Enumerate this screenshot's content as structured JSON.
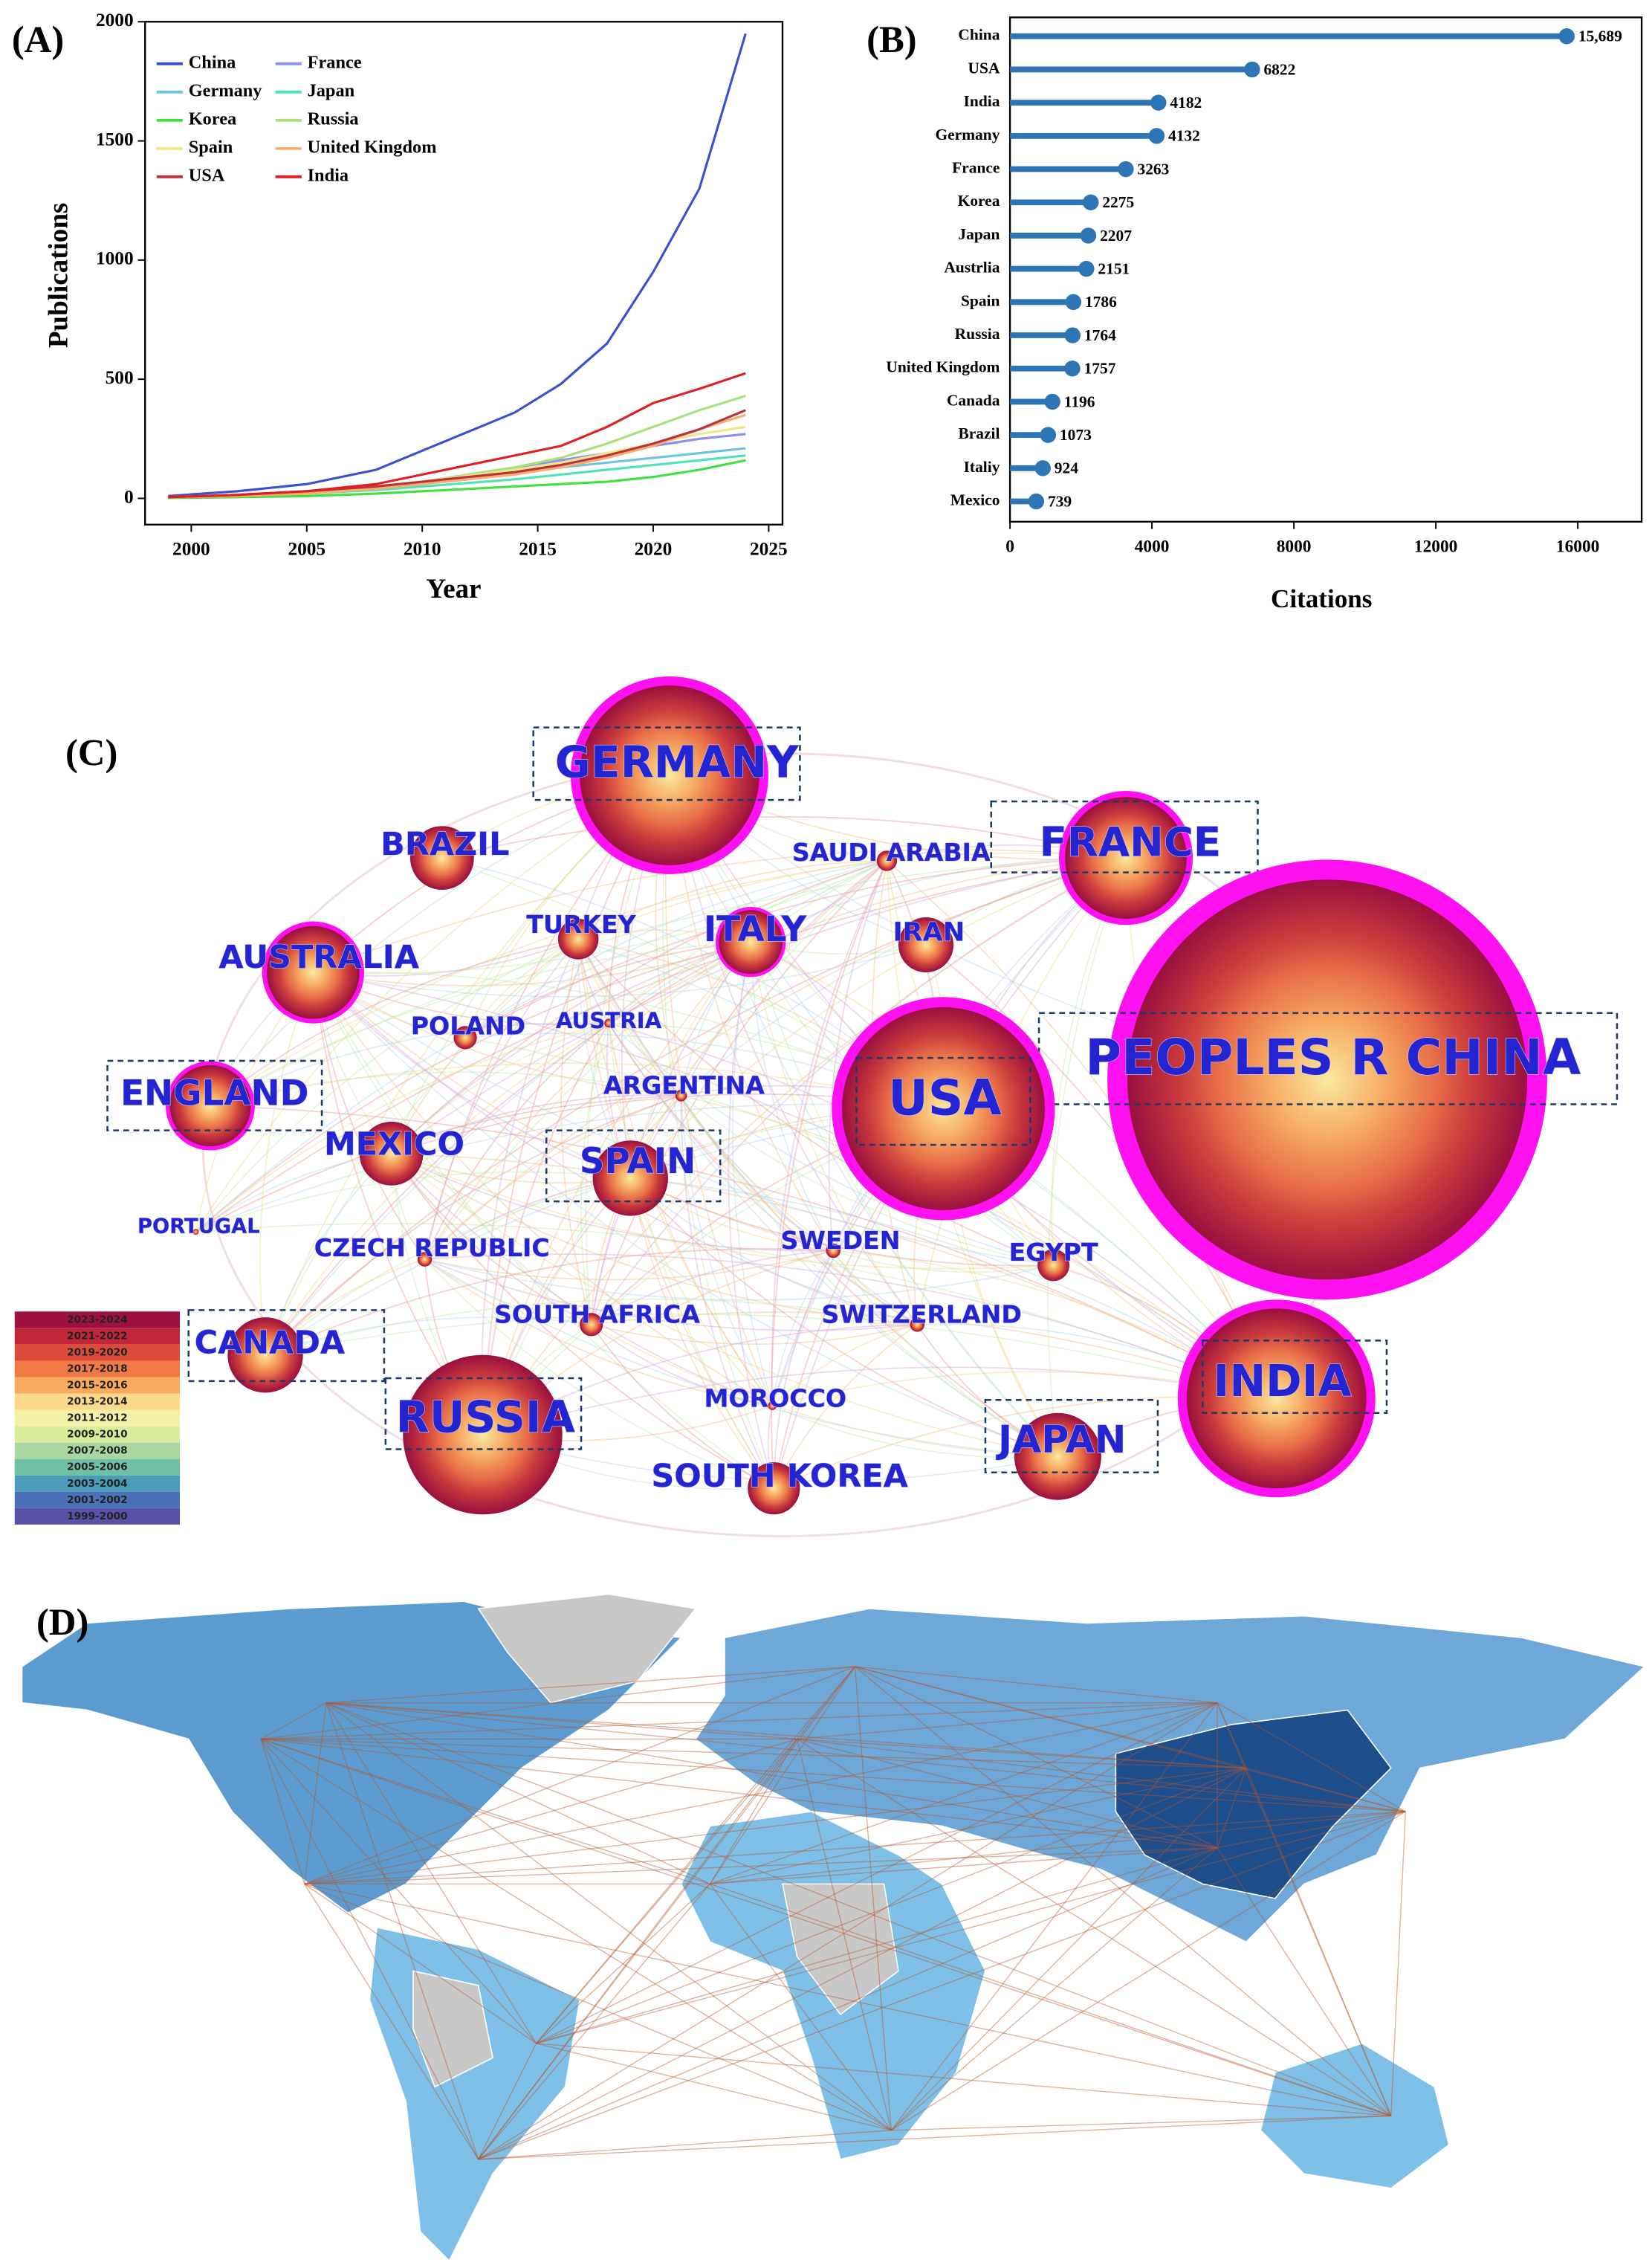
{
  "chart_data": [
    {
      "type": "line",
      "panel_label": "(A)",
      "x_label": "Year",
      "y_label": "Publications",
      "x": [
        1999,
        2002,
        2005,
        2008,
        2010,
        2012,
        2014,
        2016,
        2018,
        2020,
        2022,
        2024
      ],
      "xlim": [
        1998,
        2025.6
      ],
      "xticks": [
        2000,
        2005,
        2010,
        2015,
        2020,
        2025
      ],
      "ylim": [
        -110,
        2000
      ],
      "yticks": [
        0,
        500,
        1000,
        1500,
        2000
      ],
      "series": [
        {
          "name": "China",
          "color": "#3a4fd1",
          "values": [
            10,
            30,
            60,
            120,
            200,
            280,
            360,
            480,
            650,
            950,
            1300,
            1950
          ]
        },
        {
          "name": "France",
          "color": "#8b8ff0",
          "values": [
            5,
            15,
            30,
            50,
            70,
            100,
            130,
            160,
            190,
            220,
            250,
            270
          ]
        },
        {
          "name": "Germany",
          "color": "#6cc3e0",
          "values": [
            5,
            15,
            30,
            50,
            70,
            90,
            110,
            130,
            150,
            170,
            190,
            210
          ]
        },
        {
          "name": "Japan",
          "color": "#4de3b8",
          "values": [
            5,
            10,
            20,
            35,
            50,
            65,
            80,
            100,
            120,
            140,
            160,
            180
          ]
        },
        {
          "name": "Korea",
          "color": "#40e040",
          "values": [
            2,
            5,
            10,
            20,
            30,
            40,
            50,
            60,
            70,
            90,
            120,
            160
          ]
        },
        {
          "name": "Russia",
          "color": "#a8e07a",
          "values": [
            5,
            10,
            25,
            45,
            70,
            100,
            130,
            170,
            230,
            300,
            370,
            430
          ]
        },
        {
          "name": "Spain",
          "color": "#f0e68c",
          "values": [
            5,
            15,
            30,
            50,
            70,
            95,
            120,
            150,
            190,
            230,
            270,
            300
          ]
        },
        {
          "name": "United Kingdom",
          "color": "#f5b070",
          "values": [
            5,
            10,
            20,
            40,
            60,
            80,
            100,
            130,
            170,
            220,
            290,
            350
          ]
        },
        {
          "name": "USA",
          "color": "#c0303a",
          "values": [
            5,
            15,
            30,
            50,
            70,
            90,
            110,
            140,
            180,
            230,
            290,
            370
          ]
        },
        {
          "name": "India",
          "color": "#e02020",
          "values": [
            5,
            15,
            30,
            60,
            100,
            140,
            180,
            220,
            300,
            400,
            460,
            525
          ]
        }
      ]
    },
    {
      "type": "lollipop",
      "panel_label": "(B)",
      "x_label": "Citations",
      "color": "#2e75b6",
      "categories": [
        "China",
        "USA",
        "India",
        "Germany",
        "France",
        "Korea",
        "Japan",
        "Austrlia",
        "Spain",
        "Russia",
        "United Kingdom",
        "Canada",
        "Brazil",
        "Italiy",
        "Mexico"
      ],
      "values": [
        15689,
        6822,
        4182,
        4132,
        3263,
        2275,
        2207,
        2151,
        1786,
        1764,
        1757,
        1196,
        1073,
        924,
        739
      ],
      "value_labels": [
        "15,689",
        "6822",
        "4182",
        "4132",
        "3263",
        "2275",
        "2207",
        "2151",
        "1786",
        "1764",
        "1757",
        "1196",
        "1073",
        "924",
        "739"
      ],
      "xlim": [
        0,
        17800
      ],
      "xticks": [
        0,
        4000,
        8000,
        12000,
        16000
      ]
    },
    {
      "type": "network",
      "panel_label": "(C)",
      "nodes": [
        {
          "label": "GERMANY"
        },
        {
          "label": "FRANCE"
        },
        {
          "label": "PEOPLES R CHINA"
        },
        {
          "label": "USA"
        },
        {
          "label": "INDIA"
        },
        {
          "label": "BRAZIL"
        },
        {
          "label": "AUSTRALIA"
        },
        {
          "label": "ITALY"
        },
        {
          "label": "IRAN"
        },
        {
          "label": "SAUDI ARABIA"
        },
        {
          "label": "TURKEY"
        },
        {
          "label": "POLAND"
        },
        {
          "label": "AUSTRIA"
        },
        {
          "label": "ARGENTINA"
        },
        {
          "label": "ENGLAND"
        },
        {
          "label": "MEXICO"
        },
        {
          "label": "SPAIN"
        },
        {
          "label": "PORTUGAL"
        },
        {
          "label": "CZECH REPUBLIC"
        },
        {
          "label": "SWEDEN"
        },
        {
          "label": "EGYPT"
        },
        {
          "label": "SOUTH AFRICA"
        },
        {
          "label": "SWITZERLAND"
        },
        {
          "label": "CANADA"
        },
        {
          "label": "RUSSIA"
        },
        {
          "label": "MOROCCO"
        },
        {
          "label": "JAPAN"
        },
        {
          "label": "SOUTH KOREA"
        }
      ],
      "legend": [
        {
          "label": "2023-2024",
          "color": "#9e1040"
        },
        {
          "label": "2021-2022",
          "color": "#c0283a"
        },
        {
          "label": "2019-2020",
          "color": "#dc4a3a"
        },
        {
          "label": "2017-2018",
          "color": "#f07a45"
        },
        {
          "label": "2015-2016",
          "color": "#f8ab5e"
        },
        {
          "label": "2013-2014",
          "color": "#fbd88a"
        },
        {
          "label": "2011-2012",
          "color": "#f5f0a8"
        },
        {
          "label": "2009-2010",
          "color": "#d8ec9c"
        },
        {
          "label": "2007-2008",
          "color": "#a8d8a0"
        },
        {
          "label": "2005-2006",
          "color": "#70c0a8"
        },
        {
          "label": "2003-2004",
          "color": "#4a9cb8"
        },
        {
          "label": "2001-2002",
          "color": "#4a70b8"
        },
        {
          "label": "1999-2000",
          "color": "#5a50a8"
        }
      ]
    },
    {
      "type": "map",
      "panel_label": "(D)"
    }
  ]
}
